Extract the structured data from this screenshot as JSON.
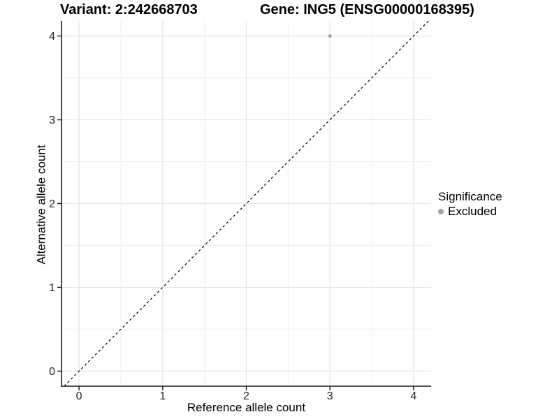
{
  "header": {
    "variant_title": "Variant: 2:242668703",
    "gene_title": "Gene: ING5 (ENSG00000168395)"
  },
  "legend": {
    "title": "Significance",
    "items": [
      {
        "label": "Excluded",
        "color": "#a3a3a3",
        "marker": "circle"
      }
    ]
  },
  "chart_data": {
    "type": "scatter",
    "title": "Variant: 2:242668703 / Gene: ING5 (ENSG00000168395)",
    "xlabel": "Reference allele count",
    "ylabel": "Alternative allele count",
    "xlim": [
      -0.21,
      4.21
    ],
    "ylim": [
      -0.18,
      4.18
    ],
    "xticks": [
      0,
      1,
      2,
      3,
      4
    ],
    "yticks": [
      0,
      1,
      2,
      3,
      4
    ],
    "minor_xticks": [
      0.5,
      1.5,
      2.5,
      3.5
    ],
    "minor_yticks": [
      0.5,
      1.5,
      2.5,
      3.5
    ],
    "grid": true,
    "legend_position": "right",
    "reference_line": {
      "equation": "y = x",
      "style": "dashed",
      "color": "#000000",
      "from": [
        -0.18,
        -0.18
      ],
      "to": [
        4.18,
        4.18
      ]
    },
    "series": [
      {
        "name": "Excluded",
        "color": "#ababab",
        "marker": "circle",
        "marker_radius": 2.6,
        "points": [
          {
            "x": 3,
            "y": 4
          }
        ]
      }
    ],
    "colors": {
      "background": "#ffffff",
      "grid_major": "#e5e5e5",
      "grid_minor": "#efefef",
      "axis_line": "#1a1a1a",
      "tick_label": "#262626"
    }
  }
}
